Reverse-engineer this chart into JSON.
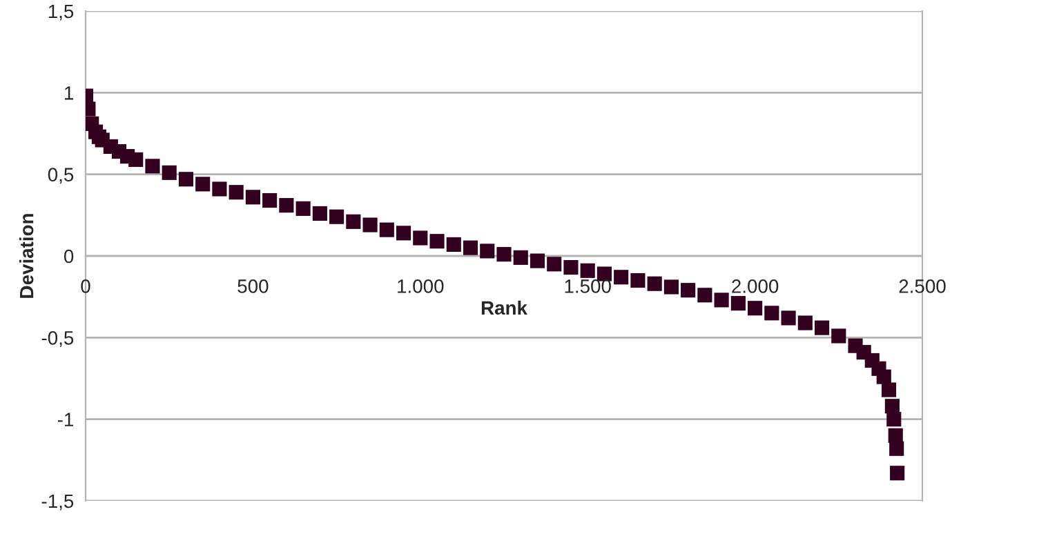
{
  "chart_data": {
    "type": "scatter",
    "xlabel": "Rank",
    "ylabel": "Deviation",
    "marker": "square",
    "grid": "y",
    "xlim": [
      0,
      2500
    ],
    "ylim": [
      -1.5,
      1.5
    ],
    "xticks": [
      0,
      500,
      {
        "value": 1000,
        "label": "1.000"
      },
      {
        "value": 1500,
        "label": "1.500"
      },
      {
        "value": 2000,
        "label": "2.000"
      },
      {
        "value": 2500,
        "label": "2.500"
      }
    ],
    "yticks": [
      {
        "value": -1.5,
        "label": "-1,5"
      },
      -1,
      {
        "value": -0.5,
        "label": "-0,5"
      },
      0,
      {
        "value": 0.5,
        "label": "0,5"
      },
      1,
      {
        "value": 1.5,
        "label": "1,5"
      }
    ],
    "series": [
      {
        "color": "#33001f",
        "x": [
          1,
          8,
          18,
          30,
          40,
          50,
          75,
          100,
          125,
          150,
          200,
          250,
          300,
          350,
          400,
          450,
          500,
          550,
          600,
          650,
          700,
          750,
          800,
          850,
          900,
          950,
          1000,
          1050,
          1100,
          1150,
          1200,
          1250,
          1300,
          1350,
          1400,
          1450,
          1500,
          1550,
          1600,
          1650,
          1700,
          1750,
          1800,
          1850,
          1900,
          1950,
          2000,
          2050,
          2100,
          2150,
          2200,
          2250,
          2300,
          2325,
          2350,
          2370,
          2385,
          2400,
          2410,
          2415,
          2420,
          2423,
          2425
        ],
        "values": [
          0.98,
          0.9,
          0.81,
          0.76,
          0.73,
          0.71,
          0.67,
          0.64,
          0.61,
          0.59,
          0.55,
          0.51,
          0.47,
          0.44,
          0.41,
          0.39,
          0.36,
          0.34,
          0.31,
          0.29,
          0.26,
          0.24,
          0.21,
          0.19,
          0.16,
          0.14,
          0.11,
          0.09,
          0.07,
          0.05,
          0.03,
          0.01,
          -0.01,
          -0.03,
          -0.05,
          -0.07,
          -0.09,
          -0.11,
          -0.13,
          -0.15,
          -0.17,
          -0.19,
          -0.21,
          -0.24,
          -0.27,
          -0.29,
          -0.32,
          -0.35,
          -0.38,
          -0.41,
          -0.44,
          -0.49,
          -0.55,
          -0.59,
          -0.64,
          -0.69,
          -0.74,
          -0.82,
          -0.92,
          -1.0,
          -1.1,
          -1.18,
          -1.33
        ]
      }
    ]
  }
}
